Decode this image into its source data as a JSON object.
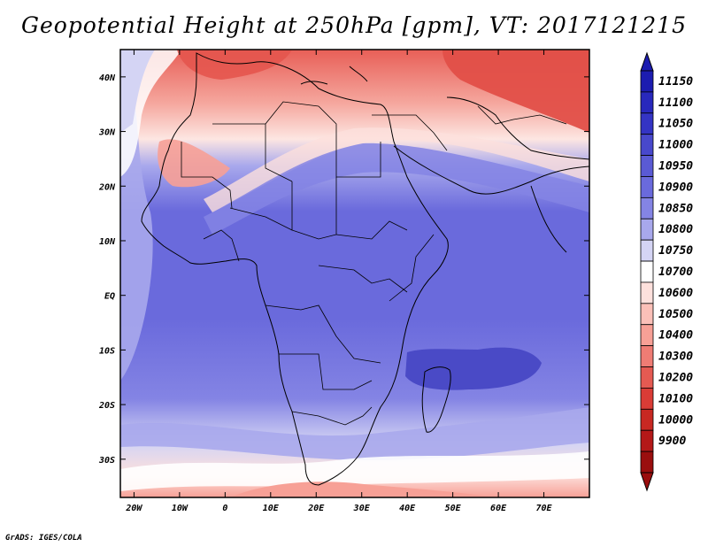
{
  "title": "Geopotential Height at 250hPa [gpm], VT: 2017121215",
  "footer": "GrADS: IGES/COLA",
  "map": {
    "lon_range": [
      -23,
      80
    ],
    "lat_range": [
      -37,
      45
    ],
    "x_ticks": [
      {
        "lon": -20,
        "label": "20W"
      },
      {
        "lon": -10,
        "label": "10W"
      },
      {
        "lon": 0,
        "label": "0"
      },
      {
        "lon": 10,
        "label": "10E"
      },
      {
        "lon": 20,
        "label": "20E"
      },
      {
        "lon": 30,
        "label": "30E"
      },
      {
        "lon": 40,
        "label": "40E"
      },
      {
        "lon": 50,
        "label": "50E"
      },
      {
        "lon": 60,
        "label": "60E"
      },
      {
        "lon": 70,
        "label": "70E"
      }
    ],
    "y_ticks": [
      {
        "lat": 40,
        "label": "40N"
      },
      {
        "lat": 30,
        "label": "30N"
      },
      {
        "lat": 20,
        "label": "20N"
      },
      {
        "lat": 10,
        "label": "10N"
      },
      {
        "lat": 0,
        "label": "EQ"
      },
      {
        "lat": -10,
        "label": "10S"
      },
      {
        "lat": -20,
        "label": "20S"
      },
      {
        "lat": -30,
        "label": "30S"
      }
    ]
  },
  "colorbar": {
    "levels": [
      "11150",
      "11100",
      "11050",
      "11000",
      "10950",
      "10900",
      "10850",
      "10800",
      "10750",
      "10700",
      "10600",
      "10500",
      "10400",
      "10300",
      "10200",
      "10100",
      "10000",
      "9900"
    ],
    "colors": [
      "#1c1cb0",
      "#2828bc",
      "#3434c4",
      "#4848cc",
      "#5a5ad4",
      "#6a6adc",
      "#8484e4",
      "#a8a8ec",
      "#d4d4f4",
      "#ffffff",
      "#fde0dc",
      "#fbc0b8",
      "#f7a096",
      "#ef7c74",
      "#e55a52",
      "#da3c36",
      "#c82822",
      "#b41818",
      "#9a0e0e"
    ]
  }
}
